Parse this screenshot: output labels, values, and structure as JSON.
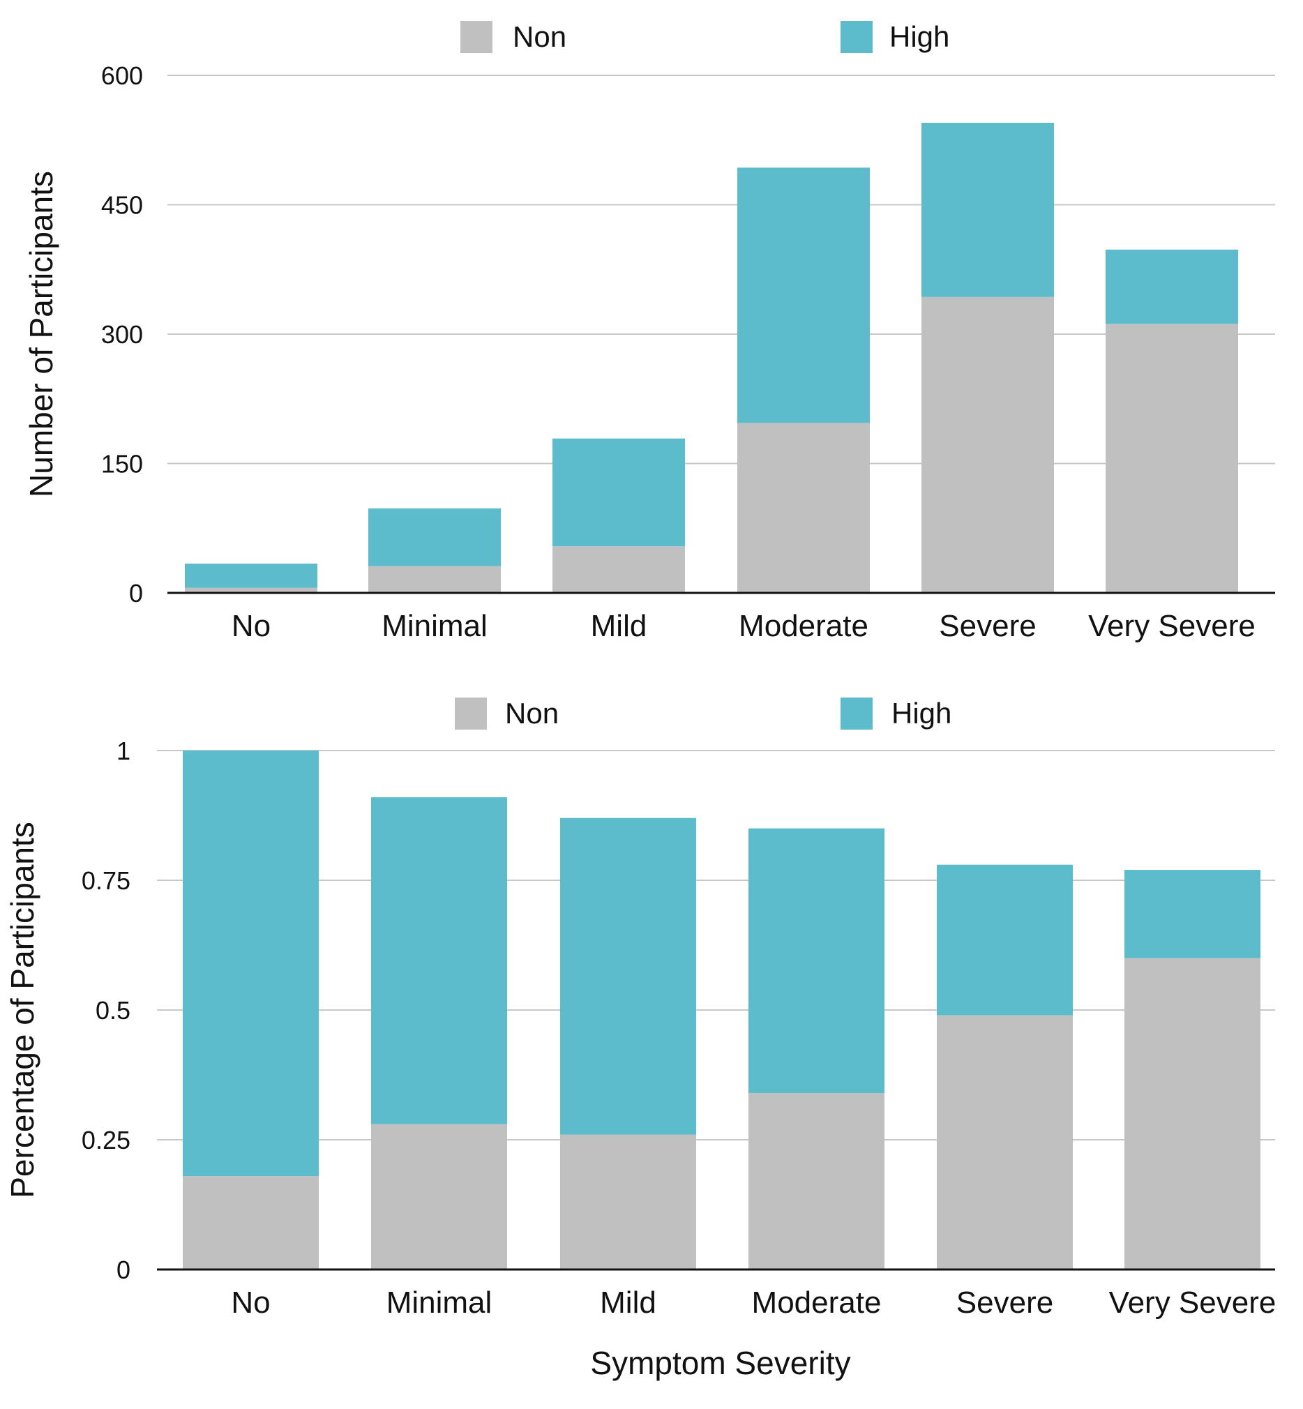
{
  "colors": {
    "non": "#c0c0c0",
    "high": "#5cbccb",
    "grid": "#c8c8c8",
    "axis": "#111111",
    "text": "#111111"
  },
  "chart_data": [
    {
      "type": "bar",
      "stacked": true,
      "categories": [
        "No",
        "Minimal",
        "Mild",
        "Moderate",
        "Severe",
        "Very Severe"
      ],
      "series": [
        {
          "name": "Non",
          "color": "#c0c0c0",
          "values": [
            6,
            31,
            54,
            197,
            343,
            312
          ]
        },
        {
          "name": "High",
          "color": "#5cbccb",
          "values": [
            28,
            67,
            125,
            296,
            202,
            86
          ]
        }
      ],
      "ylabel": "Number of Participants",
      "xlabel": "",
      "ylim": [
        0,
        600
      ],
      "yticks": [
        0,
        150,
        300,
        450,
        600
      ],
      "ytick_labels": [
        "0",
        "150",
        "300",
        "450",
        "600"
      ],
      "grid": true,
      "legend": "top-center"
    },
    {
      "type": "bar",
      "stacked": true,
      "categories": [
        "No",
        "Minimal",
        "Mild",
        "Moderate",
        "Severe",
        "Very Severe"
      ],
      "series": [
        {
          "name": "Non",
          "color": "#c0c0c0",
          "values": [
            0.18,
            0.28,
            0.26,
            0.34,
            0.49,
            0.6
          ]
        },
        {
          "name": "High",
          "color": "#5cbccb",
          "values": [
            0.82,
            0.63,
            0.61,
            0.51,
            0.29,
            0.17
          ]
        }
      ],
      "ylabel": "Percentage of Participants",
      "xlabel": "Symptom Severity",
      "ylim": [
        0,
        1
      ],
      "yticks": [
        0,
        0.25,
        0.5,
        0.75,
        1
      ],
      "ytick_labels": [
        "0",
        "0.25",
        "0.5",
        "0.75",
        "1"
      ],
      "grid": true,
      "legend": "top-center"
    }
  ]
}
